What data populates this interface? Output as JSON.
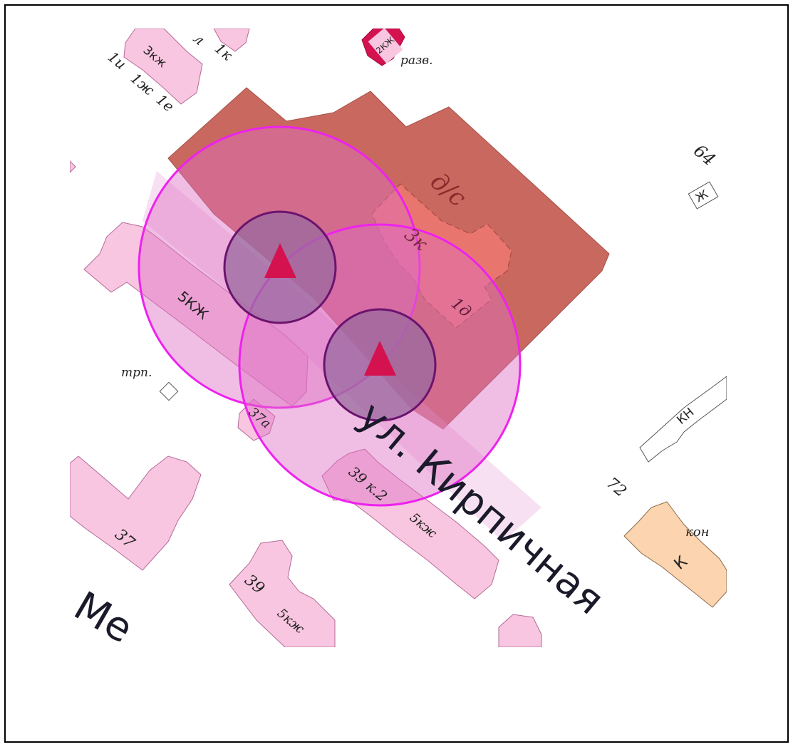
{
  "map": {
    "colors": {
      "residential": "#f8c6e0",
      "residential_stroke": "#b56a98",
      "kindergarten_zone": "#c9685f",
      "school_block": "#e8766e",
      "commercial": "#fcd5b0",
      "circle_stroke": "#ee22ee",
      "inner_circle_fill": "#9a6a9f",
      "inner_circle_stroke": "#6b136e",
      "marker": "#d3124f",
      "frame": "#000000"
    },
    "street_main": "ул. Кирпичная",
    "street_partial": "Ме",
    "labels": {
      "l_1l": "л",
      "l_1k": "1к",
      "l_3kzh_top": "3кж",
      "l_1i": "1и",
      "l_1zh": "1ж",
      "l_1e": "1е",
      "l_2kzh": "2КЖ",
      "l_razv": "разв.",
      "l_ds": "д/с",
      "l_3k": "3к",
      "l_1d": "1д",
      "l_64": "64",
      "l_zh": "Ж",
      "l_5kzh_a": "5КЖ",
      "l_trp": "трп.",
      "l_37a": "37а",
      "l_39k2": "39 к.2",
      "l_5kzh_b": "5кж",
      "l_kn": "КН",
      "l_72": "72",
      "l_kon": "кон",
      "l_k": "К",
      "l_37": "37",
      "l_39": "39",
      "l_5kzh_c": "5кж"
    },
    "icons": [
      "triangle-marker-icon",
      "triangle-marker-icon"
    ]
  }
}
